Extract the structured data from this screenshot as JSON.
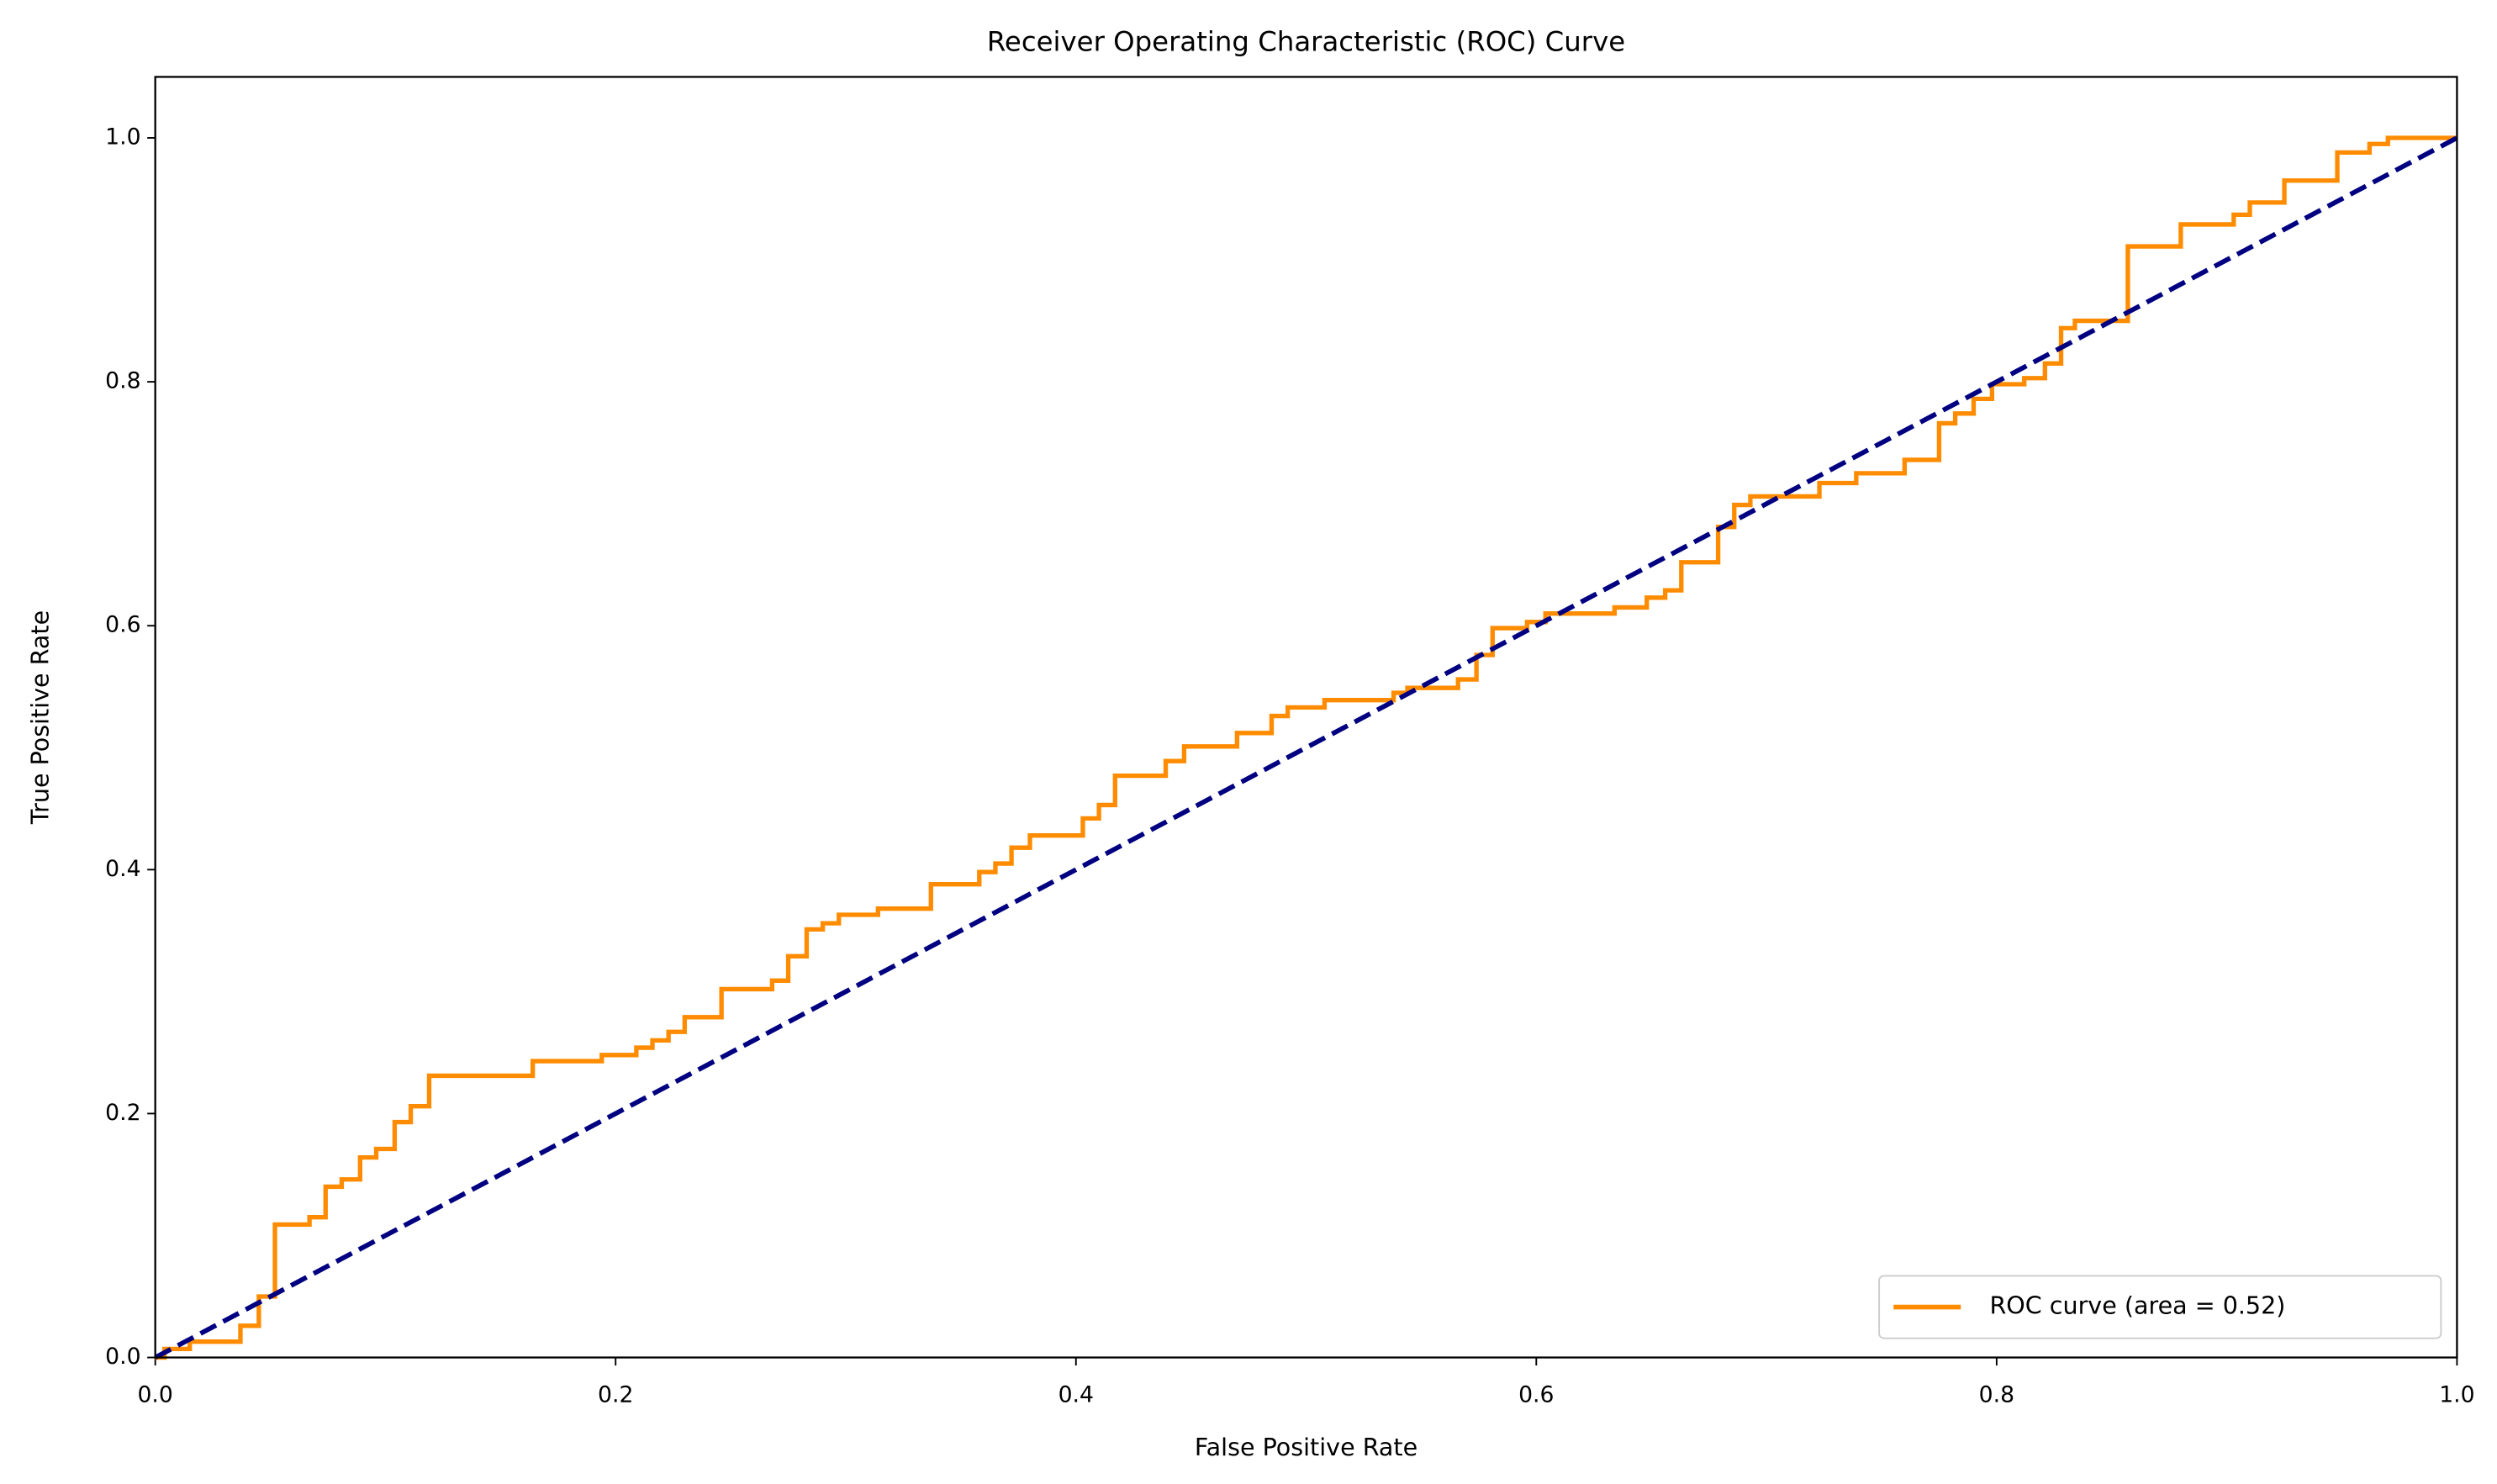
{
  "chart_data": {
    "type": "line",
    "title": "Receiver Operating Characteristic (ROC) Curve",
    "x_label": "False Positive Rate",
    "y_label": "True Positive Rate",
    "xlim": [
      0,
      1
    ],
    "ylim": [
      0,
      1.05
    ],
    "xticks": [
      {
        "value": 0,
        "label": "0.0"
      },
      0.2,
      0.4,
      0.6,
      0.8,
      {
        "value": 1,
        "label": "1.0"
      }
    ],
    "yticks": [
      {
        "value": 0,
        "label": "0.0"
      },
      0.2,
      0.4,
      0.6,
      0.8,
      {
        "value": 1,
        "label": "1.0"
      }
    ],
    "legend": "lower right",
    "series": [
      {
        "name": "ROC curve (area = 0.52)",
        "color": "#ff8c00",
        "x": [
          0,
          0.004,
          0.004,
          0.015,
          0.015,
          0.037,
          0.037,
          0.045,
          0.045,
          0.052,
          0.052,
          0.067,
          0.067,
          0.074,
          0.074,
          0.081,
          0.081,
          0.089,
          0.089,
          0.096,
          0.096,
          0.104,
          0.104,
          0.111,
          0.111,
          0.119,
          0.119,
          0.164,
          0.164,
          0.194,
          0.194,
          0.209,
          0.209,
          0.216,
          0.216,
          0.223,
          0.223,
          0.23,
          0.23,
          0.246,
          0.246,
          0.268,
          0.268,
          0.275,
          0.275,
          0.283,
          0.283,
          0.29,
          0.29,
          0.297,
          0.297,
          0.314,
          0.314,
          0.337,
          0.337,
          0.358,
          0.358,
          0.365,
          0.365,
          0.372,
          0.372,
          0.38,
          0.38,
          0.403,
          0.403,
          0.41,
          0.41,
          0.417,
          0.417,
          0.439,
          0.439,
          0.447,
          0.447,
          0.47,
          0.47,
          0.485,
          0.485,
          0.492,
          0.492,
          0.508,
          0.508,
          0.538,
          0.538,
          0.544,
          0.544,
          0.566,
          0.566,
          0.574,
          0.574,
          0.581,
          0.581,
          0.596,
          0.596,
          0.604,
          0.604,
          0.634,
          0.634,
          0.648,
          0.648,
          0.656,
          0.656,
          0.663,
          0.663,
          0.679,
          0.679,
          0.686,
          0.686,
          0.693,
          0.693,
          0.723,
          0.723,
          0.739,
          0.739,
          0.76,
          0.76,
          0.775,
          0.775,
          0.782,
          0.782,
          0.79,
          0.79,
          0.798,
          0.798,
          0.812,
          0.812,
          0.821,
          0.821,
          0.828,
          0.828,
          0.834,
          0.834,
          0.857,
          0.857,
          0.88,
          0.88,
          0.903,
          0.903,
          0.91,
          0.91,
          0.925,
          0.925,
          0.948,
          0.948,
          0.962,
          0.962,
          0.97,
          0.97,
          1
        ],
        "values": [
          0,
          0,
          0.007,
          0.007,
          0.013,
          0.013,
          0.026,
          0.026,
          0.05,
          0.05,
          0.109,
          0.109,
          0.115,
          0.115,
          0.14,
          0.14,
          0.146,
          0.146,
          0.164,
          0.164,
          0.171,
          0.171,
          0.193,
          0.193,
          0.206,
          0.206,
          0.231,
          0.231,
          0.243,
          0.243,
          0.248,
          0.248,
          0.254,
          0.254,
          0.26,
          0.26,
          0.267,
          0.267,
          0.279,
          0.279,
          0.302,
          0.302,
          0.309,
          0.309,
          0.329,
          0.329,
          0.351,
          0.351,
          0.356,
          0.356,
          0.363,
          0.363,
          0.368,
          0.368,
          0.388,
          0.388,
          0.398,
          0.398,
          0.405,
          0.405,
          0.418,
          0.418,
          0.428,
          0.428,
          0.442,
          0.442,
          0.453,
          0.453,
          0.477,
          0.477,
          0.489,
          0.489,
          0.501,
          0.501,
          0.512,
          0.512,
          0.526,
          0.526,
          0.533,
          0.533,
          0.539,
          0.539,
          0.545,
          0.545,
          0.549,
          0.549,
          0.556,
          0.556,
          0.576,
          0.576,
          0.598,
          0.598,
          0.603,
          0.603,
          0.61,
          0.61,
          0.615,
          0.615,
          0.623,
          0.623,
          0.629,
          0.629,
          0.652,
          0.652,
          0.681,
          0.681,
          0.699,
          0.699,
          0.706,
          0.706,
          0.717,
          0.717,
          0.725,
          0.725,
          0.736,
          0.736,
          0.766,
          0.766,
          0.774,
          0.774,
          0.786,
          0.786,
          0.798,
          0.798,
          0.803,
          0.803,
          0.815,
          0.815,
          0.844,
          0.844,
          0.85,
          0.85,
          0.911,
          0.911,
          0.929,
          0.929,
          0.937,
          0.937,
          0.947,
          0.947,
          0.965,
          0.965,
          0.988,
          0.988,
          0.995,
          0.995,
          1,
          1
        ]
      },
      {
        "color": "#000080",
        "dashed": true,
        "x": [
          0,
          1
        ],
        "values": [
          0,
          1
        ]
      }
    ]
  }
}
